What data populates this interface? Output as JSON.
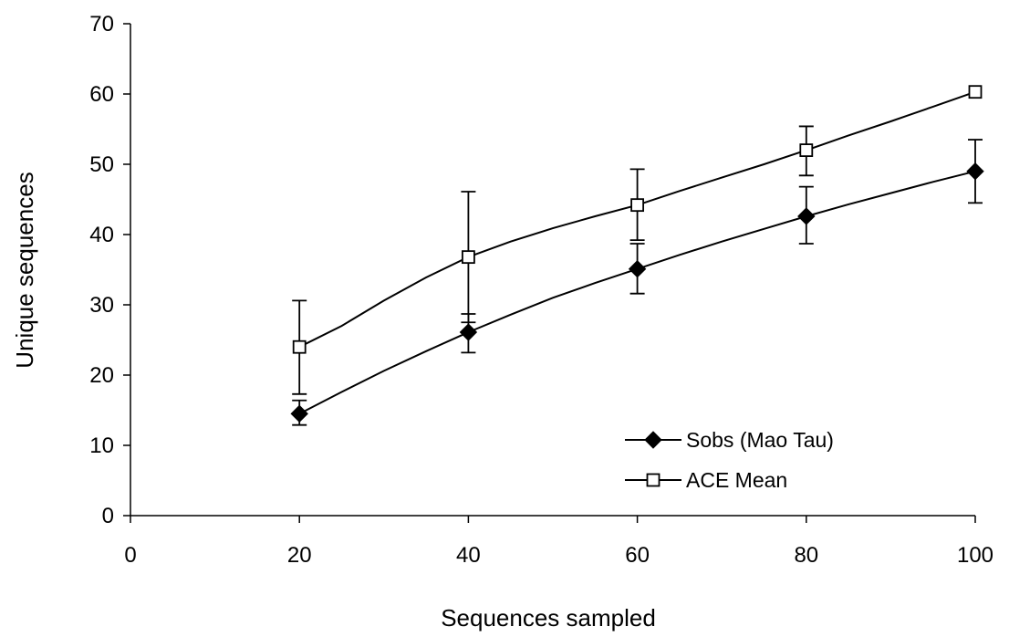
{
  "chart_data": {
    "type": "line",
    "title": "",
    "xlabel": "Sequences sampled",
    "ylabel": "Unique sequences",
    "xlim": [
      0,
      100
    ],
    "ylim": [
      0,
      70
    ],
    "xticks": [
      0,
      20,
      40,
      60,
      80,
      100
    ],
    "yticks": [
      0,
      10,
      20,
      30,
      40,
      50,
      60,
      70
    ],
    "grid": false,
    "legend_position": "lower-right",
    "series": [
      {
        "name": "Sobs (Mao Tau)",
        "marker": "filled-diamond",
        "color": "#000000",
        "curve_x": [
          20,
          25,
          30,
          35,
          40,
          45,
          50,
          55,
          60,
          65,
          70,
          75,
          80,
          85,
          90,
          95,
          100
        ],
        "curve_y": [
          14.5,
          17.6,
          20.6,
          23.4,
          26.1,
          28.6,
          31.0,
          33.1,
          35.1,
          37.1,
          39.0,
          40.8,
          42.6,
          44.3,
          45.9,
          47.5,
          49.0
        ],
        "points": [
          {
            "x": 20,
            "y": 14.5,
            "err_low": 12.9,
            "err_high": 16.4
          },
          {
            "x": 40,
            "y": 26.1,
            "err_low": 23.2,
            "err_high": 28.7
          },
          {
            "x": 60,
            "y": 35.1,
            "err_low": 31.6,
            "err_high": 38.7
          },
          {
            "x": 80,
            "y": 42.6,
            "err_low": 38.7,
            "err_high": 46.8
          },
          {
            "x": 100,
            "y": 49.0,
            "err_low": 44.5,
            "err_high": 53.5
          }
        ]
      },
      {
        "name": "ACE Mean",
        "marker": "open-square",
        "color": "#000000",
        "curve_x": [
          20,
          25,
          30,
          35,
          40,
          45,
          50,
          55,
          60,
          65,
          70,
          75,
          80,
          85,
          90,
          95,
          100
        ],
        "curve_y": [
          24.0,
          27.0,
          30.6,
          33.9,
          36.8,
          39.0,
          40.9,
          42.6,
          44.2,
          46.2,
          48.1,
          50.0,
          52.0,
          54.1,
          56.1,
          58.2,
          60.3
        ],
        "points": [
          {
            "x": 20,
            "y": 24.0,
            "err_low": 17.3,
            "err_high": 30.6
          },
          {
            "x": 40,
            "y": 36.8,
            "err_low": 27.5,
            "err_high": 46.1
          },
          {
            "x": 60,
            "y": 44.2,
            "err_low": 39.2,
            "err_high": 49.3
          },
          {
            "x": 80,
            "y": 52.0,
            "err_low": 48.4,
            "err_high": 55.4
          },
          {
            "x": 100,
            "y": 60.3,
            "err_low": 60.3,
            "err_high": 60.3
          }
        ]
      }
    ]
  }
}
